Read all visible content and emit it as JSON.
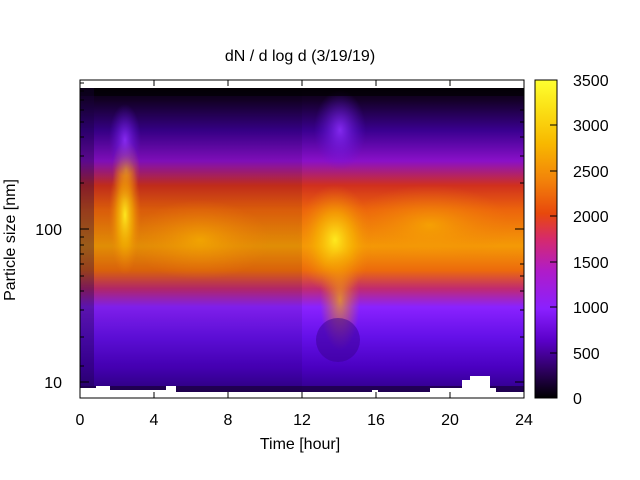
{
  "chart_data": {
    "type": "heatmap",
    "title": "dN / d log d (3/19/19)",
    "xlabel": "Time [hour]",
    "ylabel": "Particle size [nm]",
    "xlim": [
      0,
      24
    ],
    "x_ticks": [
      0,
      4,
      8,
      12,
      16,
      20,
      24
    ],
    "ylim_nm": [
      8,
      1000
    ],
    "y_scale": "log",
    "y_ticks": [
      10,
      100
    ],
    "colorbar": {
      "range": [
        0,
        3500
      ],
      "ticks": [
        0,
        500,
        1000,
        1500,
        2000,
        2500,
        3000,
        3500
      ],
      "palette": [
        "#000000",
        "#2a0058",
        "#5a00c8",
        "#8a20ff",
        "#b01cc8",
        "#d62a6c",
        "#e8480c",
        "#f2800a",
        "#f8b800",
        "#fbe418",
        "#ffff30"
      ]
    },
    "grid": false,
    "features": [
      {
        "time_h": [
          0,
          24
        ],
        "size_nm": [
          40,
          200
        ],
        "level": "1700-2300",
        "note": "persistent accumulation band"
      },
      {
        "time_h": [
          2,
          3.5
        ],
        "size_nm": [
          70,
          250
        ],
        "level": "~2700",
        "note": "early peak near 100 nm"
      },
      {
        "time_h": [
          12,
          15
        ],
        "size_nm": [
          15,
          180
        ],
        "level": "up to ~3200",
        "note": "growth event shifting to small sizes"
      },
      {
        "time_h": [
          0,
          24
        ],
        "size_nm": [
          8,
          30
        ],
        "level": "500-1100",
        "note": "low nucleation mode"
      }
    ]
  }
}
